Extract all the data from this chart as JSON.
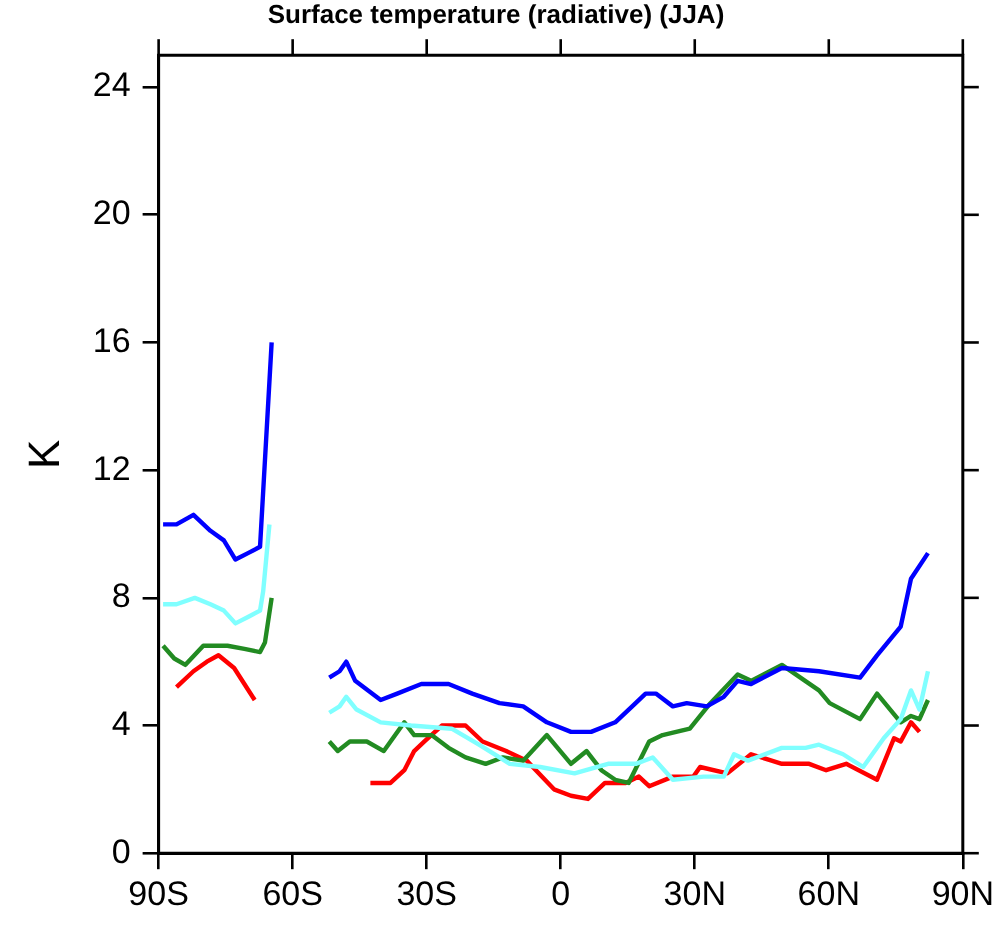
{
  "chart_data": {
    "type": "line",
    "title": "Surface temperature (radiative) (JJA)",
    "ylabel": "K",
    "xlim": [
      -90,
      90
    ],
    "xticks": [
      {
        "value": -90,
        "label": "90S"
      },
      {
        "value": -60,
        "label": "60S"
      },
      {
        "value": -30,
        "label": "30S"
      },
      {
        "value": 0,
        "label": "0"
      },
      {
        "value": 30,
        "label": "30N"
      },
      {
        "value": 60,
        "label": "60N"
      },
      {
        "value": 90,
        "label": "90N"
      }
    ],
    "ylim": [
      0,
      25
    ],
    "yticks": [
      0,
      4,
      8,
      12,
      16,
      20,
      24
    ],
    "grid": false,
    "legend": false,
    "marker": "none",
    "line_style": "solid",
    "series": [
      {
        "color": "#0000ff",
        "x": [
          -89,
          -86,
          -82.2,
          -78.4,
          -75.4,
          -72.8,
          -70,
          -67.3,
          -64.7,
          -58,
          -51.8,
          -49.5,
          -48,
          -46,
          -40.3,
          -36.6,
          -31.2,
          -25.1,
          -19.8,
          -13.7,
          -8.4,
          -3.1,
          2.3,
          6.8,
          12.2,
          16,
          19,
          21.3,
          25.1,
          28.2,
          32.7,
          36.5,
          39.6,
          42.6,
          49.5,
          57.8,
          67,
          70.8,
          76.1,
          78.4,
          82.2
        ],
        "values": [
          10.3,
          10.3,
          10.6,
          10.1,
          9.8,
          9.2,
          9.4,
          9.6,
          16.0,
          null,
          5.5,
          5.7,
          6.0,
          5.4,
          4.8,
          5.0,
          5.3,
          5.3,
          5.0,
          4.7,
          4.6,
          4.1,
          3.8,
          3.8,
          4.1,
          4.6,
          5.0,
          5.0,
          4.6,
          4.7,
          4.6,
          4.9,
          5.4,
          5.3,
          5.8,
          5.7,
          5.5,
          6.2,
          7.1,
          8.6,
          9.4
        ]
      },
      {
        "color": "#80ffff",
        "x": [
          -89,
          -86,
          -81.9,
          -78.4,
          -75.4,
          -72.8,
          -70,
          -67.3,
          -66.6,
          -65.2,
          -58,
          -51.8,
          -49.5,
          -48,
          -45.7,
          -40.3,
          -33.5,
          -24.4,
          -18.3,
          -11.4,
          -4.6,
          3.1,
          10.6,
          16.8,
          20.6,
          25.1,
          32,
          36.5,
          38.8,
          41.9,
          49.5,
          54.8,
          57.8,
          63.2,
          67.7,
          72.3,
          76.1,
          78.4,
          80.3,
          82.2
        ],
        "values": [
          7.8,
          7.8,
          8.0,
          7.8,
          7.6,
          7.2,
          7.4,
          7.6,
          8.2,
          10.3,
          null,
          4.4,
          4.6,
          4.9,
          4.5,
          4.1,
          4.0,
          3.9,
          3.4,
          2.8,
          2.7,
          2.5,
          2.8,
          2.8,
          3.0,
          2.3,
          2.4,
          2.4,
          3.1,
          2.9,
          3.3,
          3.3,
          3.4,
          3.1,
          2.7,
          3.6,
          4.2,
          5.1,
          4.5,
          5.7
        ]
      },
      {
        "color": "#228b22",
        "x": [
          -89,
          -86.5,
          -84,
          -80,
          -74.6,
          -70.8,
          -67.3,
          -66.2,
          -64.7,
          -58,
          -51.8,
          -49.9,
          -47.2,
          -43.4,
          -39.6,
          -35,
          -32.8,
          -28.9,
          -25.1,
          -21.3,
          -16.8,
          -12.9,
          -8.4,
          -3.1,
          2.3,
          5.8,
          9.1,
          12.2,
          15.2,
          19.8,
          22.8,
          28.9,
          33.5,
          39.6,
          42.6,
          49.5,
          57.8,
          60.2,
          67,
          70.8,
          76.1,
          78.4,
          80.3,
          82.2
        ],
        "values": [
          6.5,
          6.1,
          5.9,
          6.5,
          6.5,
          6.4,
          6.3,
          6.6,
          8.0,
          null,
          3.5,
          3.2,
          3.5,
          3.5,
          3.2,
          4.1,
          3.7,
          3.7,
          3.3,
          3.0,
          2.8,
          3.0,
          2.9,
          3.7,
          2.8,
          3.2,
          2.6,
          2.3,
          2.2,
          3.5,
          3.7,
          3.9,
          4.7,
          5.6,
          5.4,
          5.9,
          5.1,
          4.7,
          4.2,
          5.0,
          4.1,
          4.3,
          4.2,
          4.8
        ]
      },
      {
        "color": "#ff0000",
        "x": [
          -86,
          -82.2,
          -79.2,
          -76.6,
          -73.1,
          -68.5,
          -58,
          -42.6,
          -38.1,
          -35,
          -32.8,
          -30.5,
          -26.6,
          -21.3,
          -17.5,
          -12.2,
          -7.6,
          -1.5,
          2.3,
          6.1,
          9.9,
          14.5,
          17.5,
          19.8,
          25.1,
          29.7,
          31.2,
          37.3,
          42.6,
          49.5,
          55.6,
          59.4,
          63.9,
          70.8,
          74.6,
          76.1,
          78.4,
          80.3
        ],
        "values": [
          5.2,
          5.7,
          6.0,
          6.2,
          5.8,
          4.8,
          null,
          2.2,
          2.2,
          2.6,
          3.2,
          3.5,
          4.0,
          4.0,
          3.5,
          3.2,
          2.9,
          2.0,
          1.8,
          1.7,
          2.2,
          2.2,
          2.4,
          2.1,
          2.4,
          2.4,
          2.7,
          2.5,
          3.1,
          2.8,
          2.8,
          2.6,
          2.8,
          2.3,
          3.6,
          3.5,
          4.1,
          3.8
        ]
      }
    ]
  }
}
